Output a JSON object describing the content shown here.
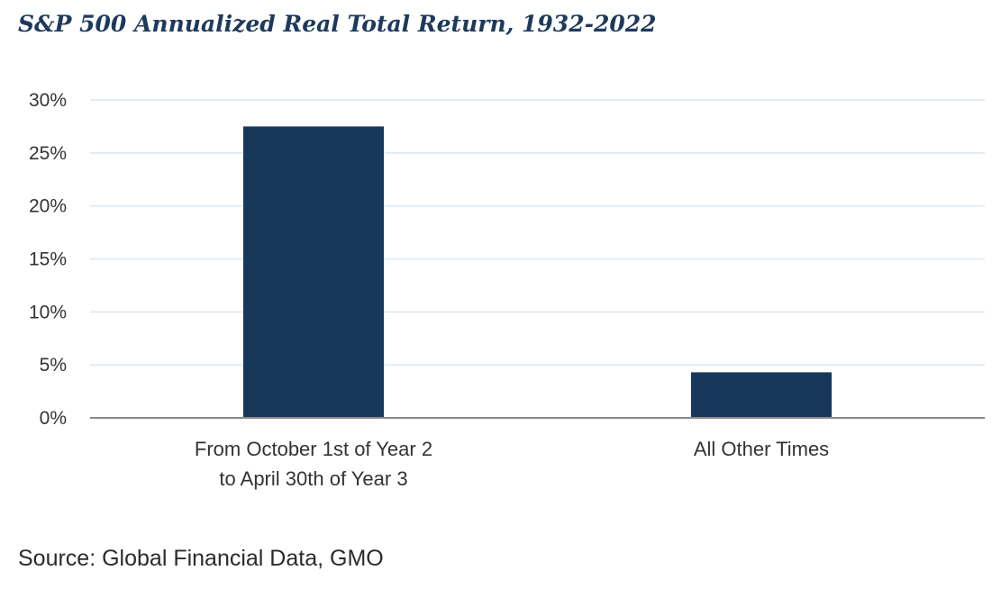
{
  "chart_data": {
    "type": "bar",
    "title": "S&P 500 Annualized Real Total Return, 1932-2022",
    "categories": [
      [
        "From October 1st of Year 2",
        "to April 30th of Year 3"
      ],
      [
        "All Other Times"
      ]
    ],
    "values": [
      27.5,
      4.3
    ],
    "unit": "%",
    "ylim": [
      0,
      30
    ],
    "yticks": [
      0,
      5,
      10,
      15,
      20,
      25,
      30
    ],
    "ytick_labels": [
      "0%",
      "5%",
      "10%",
      "15%",
      "20%",
      "25%",
      "30%"
    ],
    "grid": true,
    "legend": "none",
    "bar_color": "#17385a",
    "grid_color": "#dbe7ef",
    "axis_color": "#8a8a8a"
  },
  "source": "Source: Global Financial Data, GMO"
}
